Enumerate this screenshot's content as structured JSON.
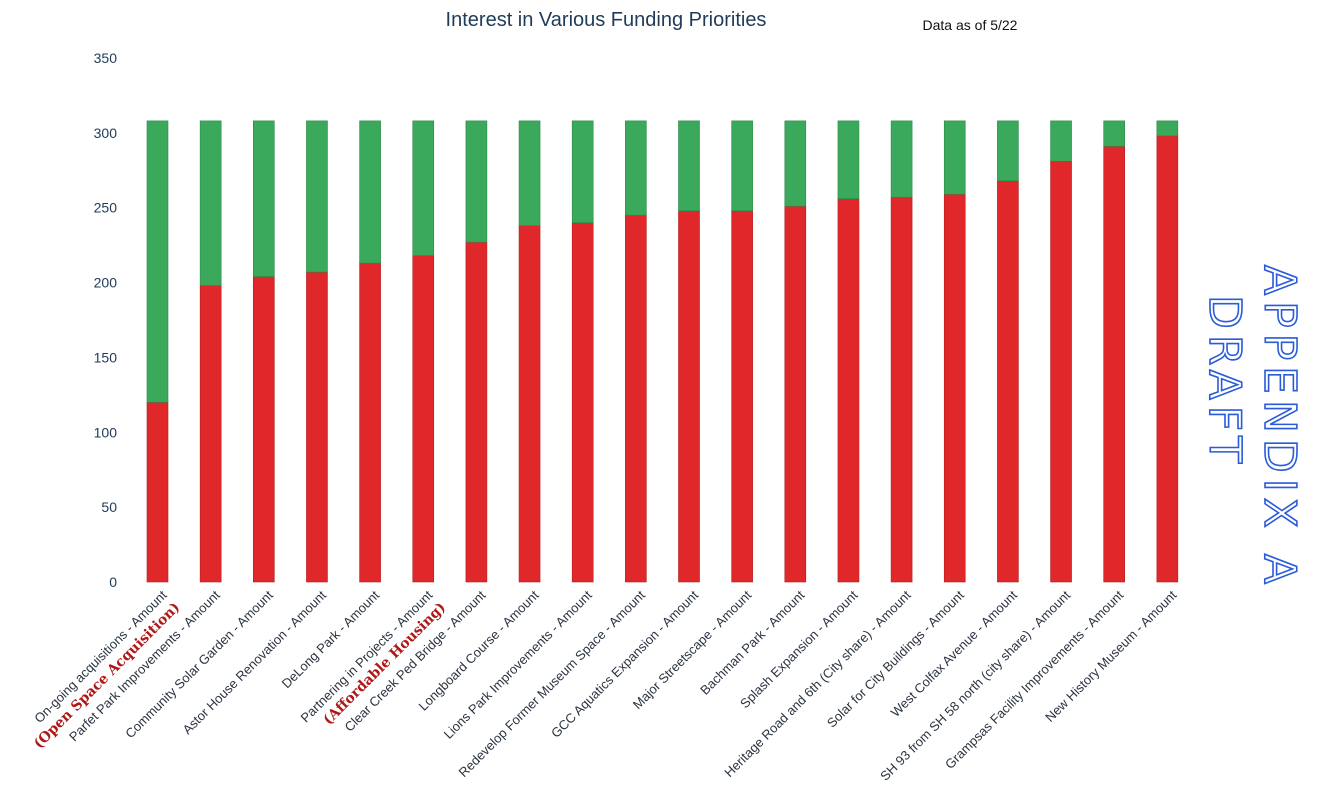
{
  "chart_data": {
    "type": "bar",
    "stacked": true,
    "title": "Interest in Various Funding Priorities",
    "note": "Data as of 5/22",
    "xlabel": "",
    "ylabel": "",
    "ylim": [
      0,
      350
    ],
    "yticks": [
      "0",
      "50",
      "100",
      "150",
      "200",
      "250",
      "300",
      "350"
    ],
    "grid": false,
    "categories": [
      "On-going acquisitions - Amount",
      "Parfet Park Improvements - Amount",
      "Community Solar Garden - Amount",
      "Astor House Renovation - Amount",
      "DeLong Park - Amount",
      "Partnering in Projects - Amount",
      "Clear Creek Ped Bridge - Amount",
      "Longboard Course - Amount",
      "Lions Park Improvements - Amount",
      "Redevelop Former Museum Space - Amount",
      "GCC Aquatics Expansion - Amount",
      "Major Streetscape - Amount",
      "Bachman Park - Amount",
      "Splash Expansion - Amount",
      "Heritage Road and 6th (City share) - Amount",
      "Solar for City Buildings - Amount",
      "West Colfax Avenue - Amount",
      "SH 93 from SH 58 north (city share) - Amount",
      "Grampsas Facility Improvements - Amount",
      "New History Museum - Amount"
    ],
    "sublabels": {
      "0": "(Open Space Acquisition)",
      "5": "(Affordable Housing)"
    },
    "series": [
      {
        "name": "Red",
        "color": "#e0282a",
        "values": [
          120,
          198,
          204,
          207,
          213,
          218,
          227,
          238,
          240,
          245,
          248,
          248,
          251,
          256,
          257,
          259,
          268,
          281,
          291,
          298
        ]
      },
      {
        "name": "Green",
        "color": "#3ba95c",
        "values": [
          188,
          110,
          104,
          101,
          95,
          90,
          81,
          70,
          68,
          63,
          60,
          60,
          57,
          52,
          51,
          49,
          40,
          27,
          17,
          10
        ]
      }
    ]
  },
  "annotation": {
    "line1": "APPENDIX A",
    "line2": "DRAFT"
  }
}
